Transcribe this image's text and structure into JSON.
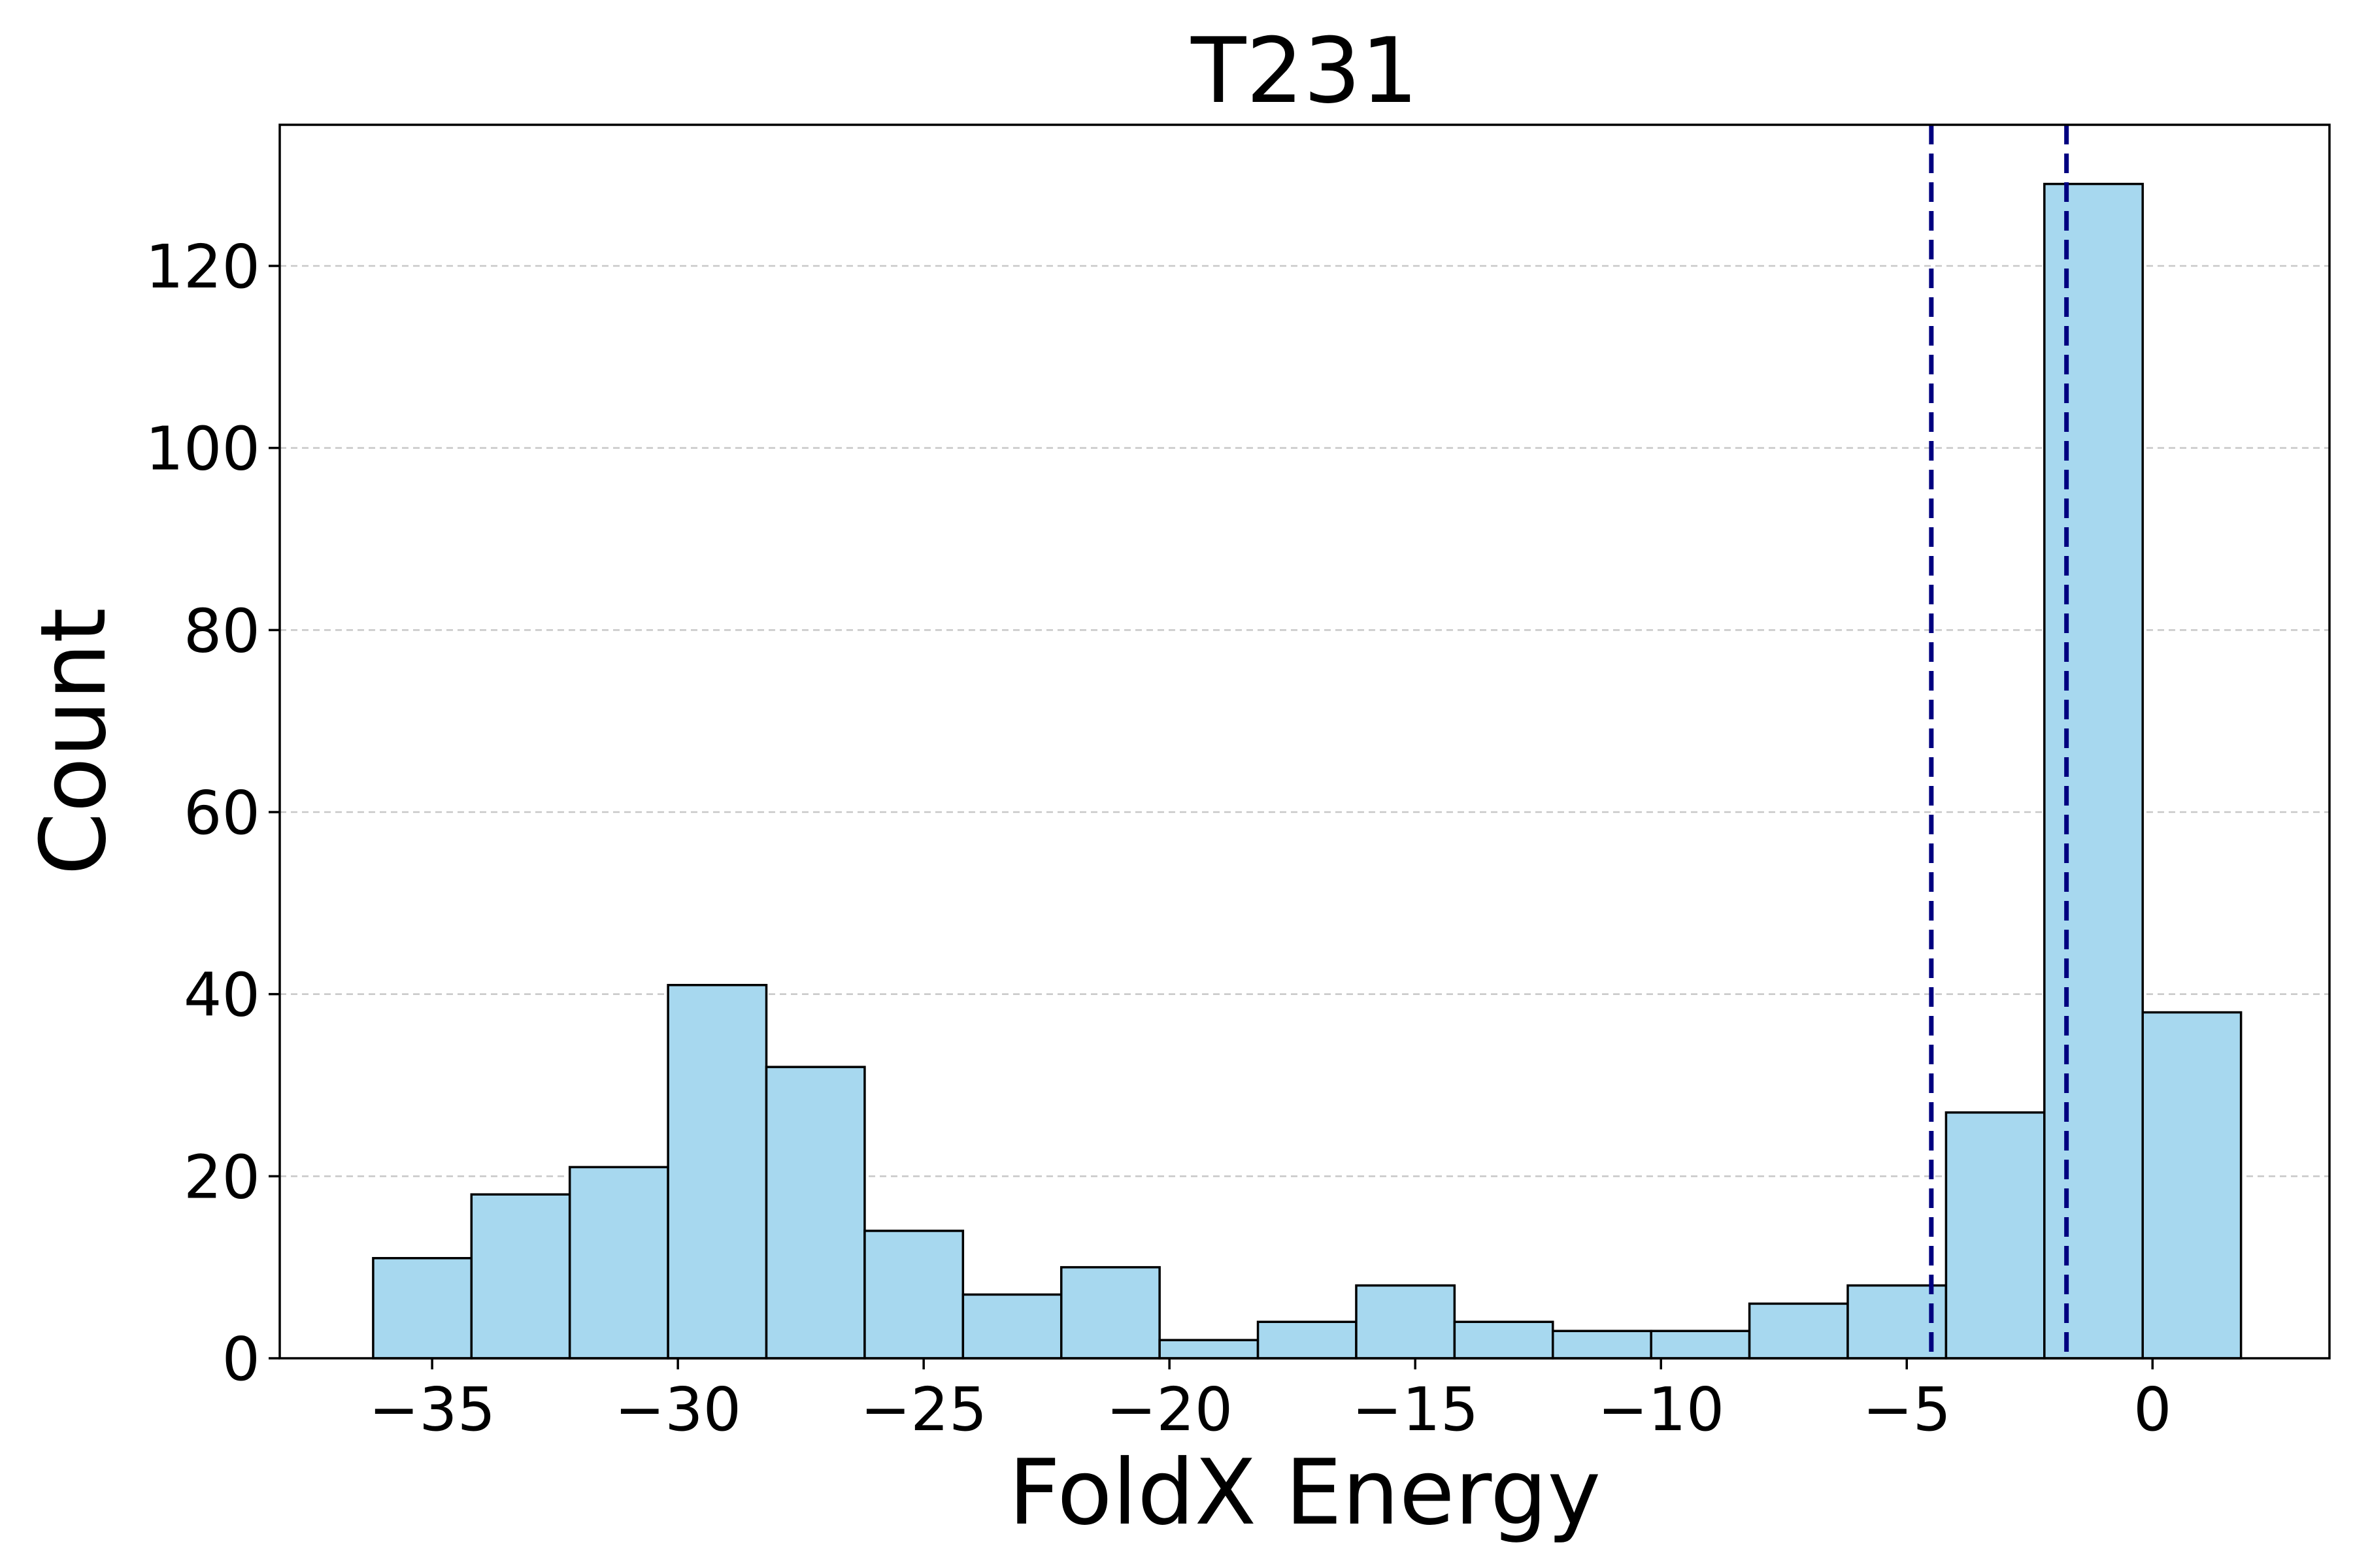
{
  "chart_data": {
    "type": "bar",
    "title": "T231",
    "xlabel": "FoldX Energy",
    "ylabel": "Count",
    "xlim": [
      -38.1,
      3.6
    ],
    "ylim": [
      0,
      135.5
    ],
    "x_ticks": [
      {
        "value": -35,
        "label": "−35"
      },
      {
        "value": -30,
        "label": "−30"
      },
      {
        "value": -25,
        "label": "−25"
      },
      {
        "value": -20,
        "label": "−20"
      },
      {
        "value": -15,
        "label": "−15"
      },
      {
        "value": -10,
        "label": "−10"
      },
      {
        "value": -5,
        "label": "−5"
      },
      {
        "value": 0,
        "label": "0"
      }
    ],
    "y_ticks": [
      {
        "value": 0,
        "label": "0"
      },
      {
        "value": 20,
        "label": "20"
      },
      {
        "value": 40,
        "label": "40"
      },
      {
        "value": 60,
        "label": "60"
      },
      {
        "value": 80,
        "label": "80"
      },
      {
        "value": 100,
        "label": "100"
      },
      {
        "value": 120,
        "label": "120"
      }
    ],
    "grid": "y-dashed",
    "bin_edges": [
      -36.2,
      -34.2,
      -32.2,
      -30.2,
      -28.2,
      -26.2,
      -24.2,
      -22.2,
      -20.2,
      -18.2,
      -16.2,
      -14.2,
      -12.2,
      -10.2,
      -8.2,
      -6.2,
      -4.2,
      -2.2,
      -0.2,
      1.8
    ],
    "values": [
      11,
      18,
      21,
      41,
      32,
      14,
      7,
      10,
      2,
      4,
      8,
      4,
      3,
      3,
      6,
      8,
      27,
      129,
      38
    ],
    "reference_lines": [
      -4.5,
      -1.75
    ],
    "colors": {
      "bar_fill": "#a7d8ef",
      "bar_edge": "#000000",
      "reference_line": "#000080",
      "grid": "#c8c8c8"
    }
  }
}
